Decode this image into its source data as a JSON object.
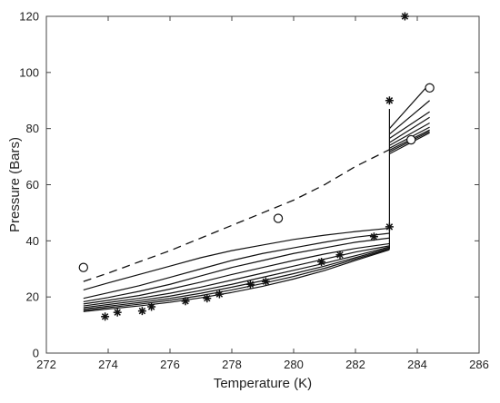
{
  "chart_data": {
    "type": "line",
    "title": "",
    "xlabel": "Temperature (K)",
    "ylabel": "Pressure (Bars)",
    "xlim": [
      272,
      286
    ],
    "ylim": [
      0,
      120
    ],
    "xticks": [
      272,
      274,
      276,
      278,
      280,
      282,
      284,
      286
    ],
    "yticks": [
      0,
      20,
      40,
      60,
      80,
      100,
      120
    ],
    "grid": false,
    "dashed_series": {
      "style": "dashed",
      "x": [
        273.2,
        274,
        275,
        276,
        277,
        278,
        279,
        280,
        281,
        282,
        283.1
      ],
      "y": [
        25.5,
        28.5,
        32.5,
        36.5,
        41,
        45.5,
        50,
        54.5,
        60,
        66.5,
        72.5
      ]
    },
    "solid_series": [
      {
        "x": [
          273.2,
          274,
          275,
          276,
          277,
          278,
          279,
          280,
          281,
          282,
          283.1
        ],
        "y": [
          22.5,
          25,
          28,
          31,
          34,
          36.5,
          38.5,
          40.5,
          42,
          43.3,
          44.5
        ]
      },
      {
        "x": [
          273.2,
          274,
          275,
          276,
          277,
          278,
          279,
          280,
          281,
          282,
          283.1
        ],
        "y": [
          19.5,
          21.5,
          24,
          27,
          30,
          33,
          35.5,
          37.5,
          39.5,
          41.3,
          42.7
        ]
      },
      {
        "x": [
          273.2,
          274,
          275,
          276,
          277,
          278,
          279,
          280,
          281,
          282,
          283.1
        ],
        "y": [
          18.3,
          19.8,
          22,
          24.5,
          27.5,
          30.5,
          33,
          35.5,
          37.5,
          39.5,
          41
        ]
      },
      {
        "x": [
          273.2,
          274,
          275,
          276,
          277,
          278,
          279,
          280,
          281,
          282,
          283.1
        ],
        "y": [
          17.5,
          18.8,
          20.5,
          22.8,
          25.3,
          28,
          30.5,
          33,
          35.3,
          37.3,
          39
        ]
      },
      {
        "x": [
          273.2,
          274,
          275,
          276,
          277,
          278,
          279,
          280,
          281,
          282,
          283.1
        ],
        "y": [
          16.8,
          18,
          19.5,
          21.3,
          23.5,
          26,
          28.5,
          31,
          33.5,
          36,
          38.2
        ]
      },
      {
        "x": [
          273.2,
          274,
          275,
          276,
          277,
          278,
          279,
          280,
          281,
          282,
          283.1
        ],
        "y": [
          16.2,
          17.3,
          18.7,
          20.3,
          22.3,
          24.5,
          27,
          29.5,
          32,
          34.7,
          37.8
        ]
      },
      {
        "x": [
          273.2,
          274,
          275,
          276,
          277,
          278,
          279,
          280,
          281,
          282,
          283.1
        ],
        "y": [
          15.7,
          16.7,
          18,
          19.5,
          21.3,
          23.5,
          25.8,
          28.3,
          31,
          34,
          37.4
        ]
      },
      {
        "x": [
          273.2,
          274,
          275,
          276,
          277,
          278,
          279,
          280,
          281,
          282,
          283.1
        ],
        "y": [
          15.2,
          16.2,
          17.4,
          18.8,
          20.5,
          22.5,
          24.8,
          27.3,
          30.2,
          33.5,
          37
        ]
      },
      {
        "x": [
          273.2,
          274,
          275,
          276,
          277,
          278,
          279,
          280,
          281,
          282,
          283.1
        ],
        "y": [
          14.8,
          15.7,
          16.8,
          18.1,
          19.7,
          21.6,
          23.8,
          26.4,
          29.4,
          33,
          36.8
        ]
      }
    ],
    "upper_segments": [
      {
        "x": [
          283.1,
          284.4
        ],
        "y": [
          80,
          96
        ]
      },
      {
        "x": [
          283.1,
          284.4
        ],
        "y": [
          78,
          90
        ]
      },
      {
        "x": [
          283.1,
          284.4
        ],
        "y": [
          76.5,
          86
        ]
      },
      {
        "x": [
          283.1,
          284.4
        ],
        "y": [
          75,
          84
        ]
      },
      {
        "x": [
          283.1,
          284.4
        ],
        "y": [
          74,
          82
        ]
      },
      {
        "x": [
          283.1,
          284.4
        ],
        "y": [
          73,
          80.5
        ]
      },
      {
        "x": [
          283.1,
          284.4
        ],
        "y": [
          72.3,
          79.5
        ]
      },
      {
        "x": [
          283.1,
          284.4
        ],
        "y": [
          71.7,
          79
        ]
      },
      {
        "x": [
          283.1,
          284.4
        ],
        "y": [
          71,
          78.5
        ]
      }
    ],
    "vertical_segment": {
      "x": [
        283.1,
        283.1
      ],
      "y": [
        37,
        87
      ]
    },
    "circle_points": {
      "x": [
        273.2,
        279.5,
        283.8,
        284.4
      ],
      "y": [
        30.5,
        48,
        76,
        94.5
      ]
    },
    "star_points": {
      "x": [
        273.9,
        274.3,
        275.1,
        275.4,
        276.5,
        277.2,
        277.6,
        278.6,
        279.1,
        280.9,
        281.5,
        282.6,
        283.1,
        283.1,
        283.6
      ],
      "y": [
        13,
        14.5,
        15,
        16.5,
        18.5,
        19.5,
        21,
        24.5,
        25.5,
        32.5,
        35,
        41.5,
        45,
        90,
        120
      ]
    }
  }
}
